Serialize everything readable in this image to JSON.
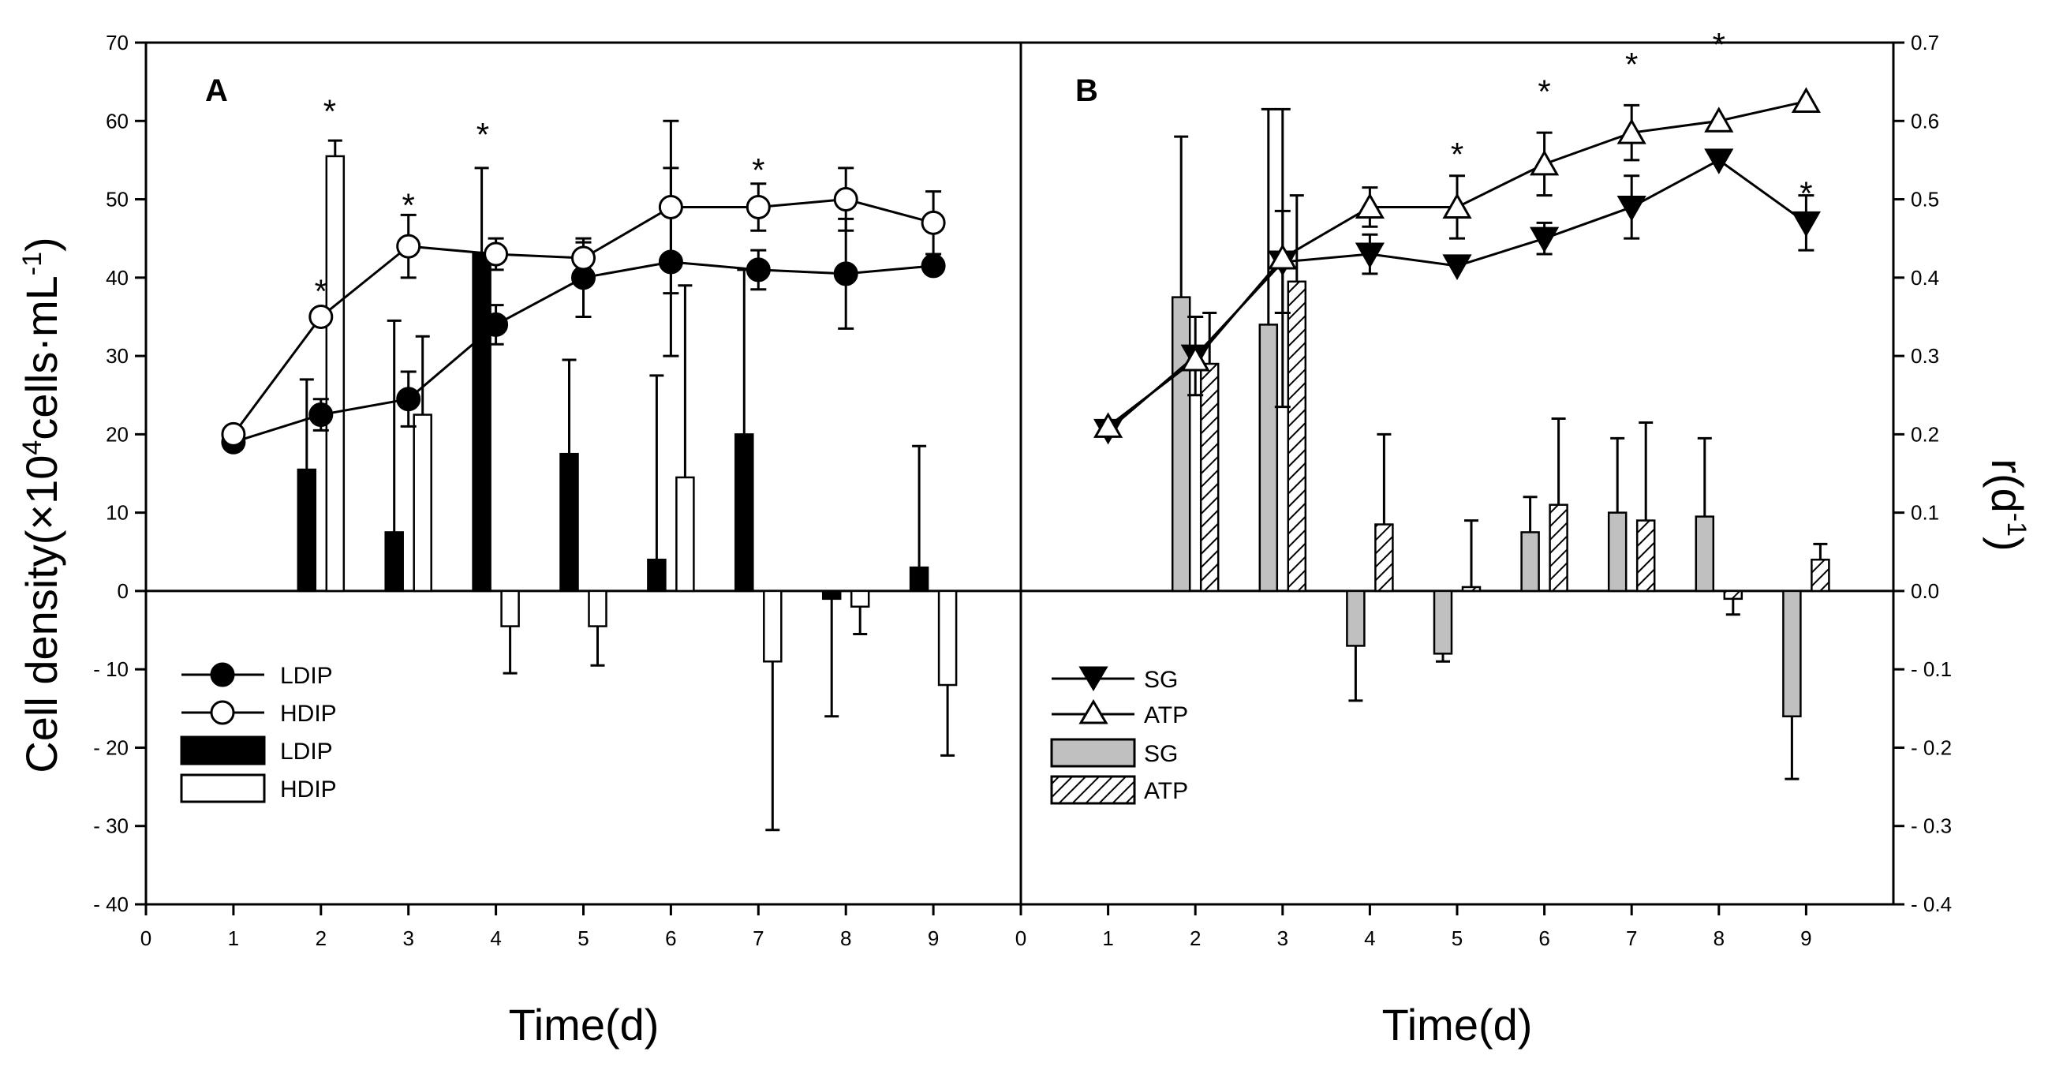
{
  "chart_data": [
    {
      "panel": "A",
      "type": "bar+line",
      "x": [
        1,
        2,
        3,
        4,
        5,
        6,
        7,
        8,
        9
      ],
      "xlim": [
        0,
        10
      ],
      "xticks": [
        "0",
        "1",
        "2",
        "3",
        "4",
        "5",
        "6",
        "7",
        "8",
        "9"
      ],
      "ylim": [
        -40,
        70
      ],
      "ylabel": "Cell density(×10⁴cells·mL⁻¹)",
      "y2lim": [
        -0.4,
        0.7
      ],
      "xlabel": "Time(d)",
      "line_series": [
        {
          "name": "LDIP",
          "marker": "circle-filled",
          "values": [
            19,
            22.5,
            24.5,
            34,
            40,
            42,
            41,
            40.5,
            41.5
          ],
          "errors": [
            0,
            2,
            3.5,
            2.5,
            5,
            12,
            2.5,
            7,
            0
          ]
        },
        {
          "name": "HDIP",
          "marker": "circle-open",
          "values": [
            20,
            35,
            44,
            43,
            42.5,
            49,
            49,
            50,
            47
          ],
          "errors": [
            0,
            0,
            4,
            2,
            2,
            11,
            3,
            4,
            4
          ]
        }
      ],
      "bar_series": [
        {
          "name": "LDIP",
          "fill": "black",
          "values": [
            null,
            15.5,
            7.5,
            43,
            17.5,
            4,
            20,
            -1,
            3
          ],
          "errors": [
            null,
            11.5,
            27,
            11,
            12,
            23.5,
            21,
            15,
            15.5
          ]
        },
        {
          "name": "HDIP",
          "fill": "white",
          "values": [
            null,
            55.5,
            22.5,
            -4.5,
            -4.5,
            14.5,
            -9,
            -2,
            -12
          ],
          "errors": [
            null,
            2,
            10,
            6,
            5,
            24.5,
            21.5,
            3.5,
            9
          ]
        }
      ],
      "annotations": [
        {
          "x": 2,
          "y": 39,
          "text": "*"
        },
        {
          "x": 2.1,
          "y": 62,
          "text": "*"
        },
        {
          "x": 3,
          "y": 50,
          "text": "*"
        },
        {
          "x": 3.85,
          "y": 59,
          "text": "*"
        },
        {
          "x": 7,
          "y": 54.5,
          "text": "*"
        }
      ]
    },
    {
      "panel": "B",
      "type": "bar+line",
      "x": [
        1,
        2,
        3,
        4,
        5,
        6,
        7,
        8,
        9
      ],
      "xlim": [
        0,
        10
      ],
      "xticks": [
        "0",
        "1",
        "2",
        "3",
        "4",
        "5",
        "6",
        "7",
        "8",
        "9"
      ],
      "ylim": [
        -40,
        70
      ],
      "y2lim": [
        -0.4,
        0.7
      ],
      "y2ticks": [
        "- 0.4",
        "- 0.3",
        "- 0.2",
        "- 0.1",
        "0.0",
        "0.1",
        "0.2",
        "0.3",
        "0.4",
        "0.5",
        "0.6",
        "0.7"
      ],
      "y2label": "r(d⁻¹)",
      "xlabel": "Time(d)",
      "line_series": [
        {
          "name": "SG",
          "marker": "triangle-down-filled",
          "values": [
            20.5,
            30,
            42,
            43,
            41.5,
            45,
            49,
            55,
            47
          ],
          "errors": [
            0,
            5,
            6.5,
            2.5,
            0,
            2,
            4,
            0,
            3.5
          ]
        },
        {
          "name": "ATP",
          "marker": "triangle-up-open",
          "values": [
            21,
            29.5,
            42.5,
            49,
            49,
            54.5,
            58.5,
            60,
            62.5
          ],
          "errors": [
            0,
            0,
            19,
            2.5,
            4,
            4,
            3.5,
            0,
            0
          ]
        }
      ],
      "bar_series": [
        {
          "name": "SG",
          "fill": "gray",
          "values": [
            null,
            37.5,
            34,
            -7,
            -8,
            7.5,
            10,
            9.5,
            -16
          ],
          "errors": [
            null,
            20.5,
            27.5,
            7,
            1,
            4.5,
            9.5,
            10,
            8
          ]
        },
        {
          "name": "ATP",
          "fill": "hatched",
          "values": [
            null,
            29,
            39.5,
            8.5,
            0.5,
            11,
            9,
            -1,
            4
          ],
          "errors": [
            null,
            6.5,
            11,
            11.5,
            8.5,
            11,
            12.5,
            2,
            2
          ]
        }
      ],
      "annotations": [
        {
          "x": 5,
          "y": 56.5,
          "text": "*"
        },
        {
          "x": 6,
          "y": 64.5,
          "text": "*"
        },
        {
          "x": 7,
          "y": 68,
          "text": "*"
        },
        {
          "x": 8,
          "y": 70.5,
          "text": "*"
        },
        {
          "x": 9,
          "y": 51.5,
          "text": "*"
        }
      ]
    }
  ],
  "axis": {
    "yticks_left": [
      "- 40",
      "- 30",
      "- 20",
      "- 10",
      "0",
      "10",
      "20",
      "30",
      "40",
      "50",
      "60",
      "70"
    ],
    "ylabel_left": "Cell density(×10",
    "ylabel_left_sup": "4",
    "ylabel_left_rest": "cells·mL",
    "ylabel_left_sup2": "-1",
    "ylabel_left_end": ")",
    "y2label_main": "r(d",
    "y2label_sup": "-1",
    "y2label_end": ")",
    "xlabel_a": "Time(d)",
    "xlabel_b": "Time(d)"
  },
  "panel_labels": {
    "a": "A",
    "b": "B"
  },
  "legend_a": [
    "LDIP",
    "HDIP",
    "LDIP",
    "HDIP"
  ],
  "legend_b": [
    "SG",
    "ATP",
    "SG",
    "ATP"
  ],
  "colors": {
    "ink": "#000000",
    "gray_bar": "#c0c0c0",
    "white": "#ffffff"
  }
}
